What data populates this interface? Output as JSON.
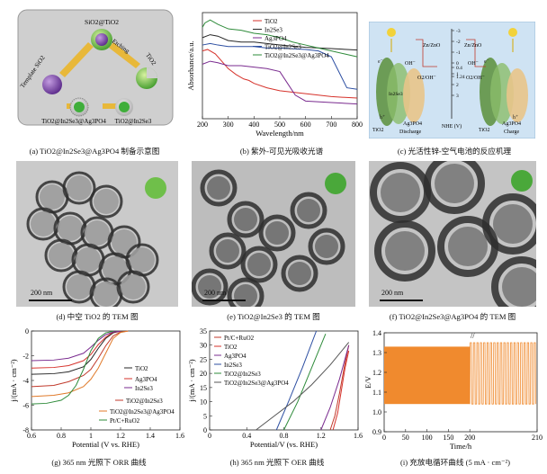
{
  "panels": {
    "a": {
      "caption": "(a) TiO2@In2Se3@Ag3PO4 制备示意图",
      "labels": {
        "top": "SiO2@TiO2",
        "left": "Template SiO2",
        "etching": "Etching",
        "tio2": "TiO2",
        "bottom_left": "TiO2@In2Se3@Ag3PO4",
        "bottom_right": "TiO2@In2Se3"
      }
    },
    "b": {
      "caption": "(b) 紫外-可见光吸收光谱",
      "colors": {
        "TiO2": "#d6322b",
        "In2Se3": "#262626",
        "Ag3PO4": "#7a2b8f",
        "TiO2@In2Se3": "#2d4fa2",
        "TiO2@In2Se3@Ag3PO4": "#2e8b3a"
      }
    },
    "c": {
      "caption": "(c) 光活性锌-空气电池的反应机理",
      "labels": {
        "zn_left": "Zn/ZnO",
        "zn_right": "Zn/ZnO",
        "oh_left": "OH⁻",
        "oh_right": "OH⁻",
        "o2_left": "O2/OH⁻",
        "o2_right": "O2/OH⁻",
        "in2se3": "In2Se3",
        "tio2_left": "TiO2",
        "ag3po4_left": "Ag3PO4",
        "tio2_right": "TiO2",
        "ag3po4_right": "Ag3PO4",
        "discharge": "Discharge",
        "charge": "Charge",
        "nhe": "NHE (V)",
        "e_minus": "e⁻",
        "h_plus": "h⁺",
        "ticks": [
          "-3",
          "-2",
          "-1",
          "0",
          "0.4",
          "1",
          "1.24",
          "2",
          "3"
        ]
      }
    },
    "d": {
      "caption": "(d) 中空 TiO2 的 TEM 图",
      "scale": "200 nm"
    },
    "e": {
      "caption": "(e) TiO2@In2Se3 的 TEM 图",
      "scale": "200 nm"
    },
    "f": {
      "caption": "(f) TiO2@In2Se3@Ag3PO4 的 TEM 图",
      "scale": "200 nm"
    },
    "g": {
      "caption": "(g) 365 nm 光照下 ORR 曲线"
    },
    "h": {
      "caption": "(h) 365 nm 光照下 OER 曲线"
    },
    "i": {
      "caption": "(i) 充放电循环曲线 (5 mA · cm⁻²)",
      "break_mark": "//"
    }
  },
  "chart_data": [
    {
      "id": "b",
      "type": "line",
      "xlabel": "Wavelength/nm",
      "ylabel": "Absorbance/a.u.",
      "xlim": [
        200,
        800
      ],
      "xticks": [
        200,
        300,
        400,
        500,
        600,
        700,
        800
      ],
      "legend": "top-right",
      "series": [
        {
          "name": "TiO2",
          "x": [
            200,
            220,
            250,
            280,
            300,
            330,
            360,
            380,
            400,
            450,
            500,
            600,
            700,
            800
          ],
          "values": [
            2.3,
            2.35,
            2.2,
            1.9,
            1.7,
            1.5,
            1.35,
            1.3,
            1.2,
            1.05,
            0.95,
            0.85,
            0.75,
            0.7
          ]
        },
        {
          "name": "In2Se3",
          "x": [
            200,
            230,
            260,
            300,
            350,
            400,
            450,
            500,
            600,
            700,
            760,
            800
          ],
          "values": [
            2.75,
            2.85,
            2.8,
            2.65,
            2.6,
            2.6,
            2.55,
            2.5,
            2.42,
            2.38,
            2.35,
            2.33
          ]
        },
        {
          "name": "Ag3PO4",
          "x": [
            200,
            230,
            260,
            300,
            350,
            400,
            450,
            500,
            530,
            560,
            600,
            700,
            800
          ],
          "values": [
            1.85,
            1.95,
            1.9,
            1.8,
            1.8,
            1.75,
            1.7,
            1.6,
            1.2,
            0.8,
            0.6,
            0.55,
            0.5
          ]
        },
        {
          "name": "TiO2@In2Se3",
          "x": [
            200,
            230,
            260,
            300,
            350,
            400,
            450,
            500,
            600,
            650,
            700,
            740,
            760,
            800
          ],
          "values": [
            2.5,
            2.55,
            2.5,
            2.45,
            2.45,
            2.45,
            2.4,
            2.4,
            2.35,
            2.3,
            2.1,
            1.4,
            1.05,
            1.0
          ]
        },
        {
          "name": "TiO2@In2Se3@Ag3PO4",
          "x": [
            200,
            210,
            230,
            260,
            300,
            350,
            400,
            450,
            500,
            550,
            600,
            650,
            700,
            750,
            800
          ],
          "values": [
            3.1,
            3.25,
            3.35,
            3.2,
            3.05,
            3.0,
            2.9,
            2.85,
            2.75,
            2.6,
            2.5,
            2.4,
            2.3,
            2.2,
            2.1
          ]
        }
      ]
    },
    {
      "id": "g",
      "type": "line",
      "xlabel": "Potential (V vs. RHE)",
      "ylabel": "j/(mA · cm⁻²)",
      "xlim": [
        0.6,
        1.6
      ],
      "ylim": [
        -8,
        0
      ],
      "xticks": [
        0.6,
        0.8,
        1.0,
        1.2,
        1.4,
        1.6
      ],
      "yticks": [
        0,
        -2,
        -4,
        -6,
        -8
      ],
      "legend": "bottom-right",
      "series": [
        {
          "name": "TiO2",
          "x": [
            0.6,
            0.75,
            0.85,
            0.95,
            1.0,
            1.05,
            1.1,
            1.15,
            1.2
          ],
          "values": [
            -3.5,
            -3.45,
            -3.3,
            -2.9,
            -2.3,
            -1.4,
            -0.6,
            -0.15,
            -0.02
          ]
        },
        {
          "name": "Ag3PO4",
          "x": [
            0.6,
            0.75,
            0.85,
            0.95,
            1.0,
            1.05,
            1.1,
            1.15,
            1.2
          ],
          "values": [
            -3.0,
            -2.95,
            -2.8,
            -2.4,
            -1.9,
            -1.1,
            -0.5,
            -0.1,
            -0.02
          ]
        },
        {
          "name": "In2Se3",
          "x": [
            0.6,
            0.75,
            0.85,
            0.95,
            1.0,
            1.05,
            1.1,
            1.15,
            1.2
          ],
          "values": [
            -2.4,
            -2.35,
            -2.2,
            -1.8,
            -1.3,
            -0.75,
            -0.3,
            -0.08,
            -0.02
          ]
        },
        {
          "name": "TiO2@In2Se3",
          "x": [
            0.6,
            0.75,
            0.85,
            0.95,
            1.0,
            1.05,
            1.1,
            1.15,
            1.2,
            1.25
          ],
          "values": [
            -4.5,
            -4.4,
            -4.1,
            -3.6,
            -3.1,
            -2.2,
            -1.2,
            -0.4,
            -0.08,
            -0.01
          ]
        },
        {
          "name": "TiO2@In2Se3@Ag3PO4",
          "x": [
            0.6,
            0.75,
            0.85,
            0.95,
            1.0,
            1.05,
            1.1,
            1.15,
            1.2,
            1.25
          ],
          "values": [
            -5.3,
            -5.2,
            -5.0,
            -4.5,
            -3.9,
            -3.0,
            -1.8,
            -0.6,
            -0.12,
            -0.01
          ]
        },
        {
          "name": "Pt/C+RuO2",
          "x": [
            0.6,
            0.7,
            0.8,
            0.85,
            0.9,
            0.95,
            1.0,
            1.05,
            1.1,
            1.15
          ],
          "values": [
            -5.9,
            -5.85,
            -5.6,
            -5.2,
            -4.4,
            -3.1,
            -1.6,
            -0.6,
            -0.15,
            -0.02
          ]
        }
      ]
    },
    {
      "id": "h",
      "type": "line",
      "xlabel": "Potential/V (vs. RHE)",
      "ylabel": "j/(mA · cm⁻²)",
      "xlim": [
        0.0,
        1.6
      ],
      "ylim": [
        0,
        35
      ],
      "xticks": [
        0.0,
        0.4,
        0.8,
        1.2,
        1.6
      ],
      "yticks": [
        0,
        5,
        10,
        15,
        20,
        25,
        30,
        35
      ],
      "legend": "top-left",
      "series": [
        {
          "name": "Pt/C+RuO2",
          "x": [
            1.3,
            1.35,
            1.4,
            1.45,
            1.5
          ],
          "values": [
            0,
            5,
            13,
            22,
            30
          ]
        },
        {
          "name": "TiO2",
          "x": [
            1.33,
            1.38,
            1.42,
            1.46,
            1.5
          ],
          "values": [
            0,
            6,
            14,
            22,
            28
          ]
        },
        {
          "name": "Ag3PO4",
          "x": [
            1.2,
            1.3,
            1.4,
            1.5
          ],
          "values": [
            0,
            8,
            18,
            30
          ]
        },
        {
          "name": "In2Se3",
          "x": [
            0.72,
            0.85,
            1.0,
            1.15
          ],
          "values": [
            0,
            10,
            22,
            35
          ]
        },
        {
          "name": "TiO2@In2Se3",
          "x": [
            0.8,
            0.95,
            1.1,
            1.25
          ],
          "values": [
            0,
            10,
            22,
            34
          ]
        },
        {
          "name": "TiO2@In2Se3@Ag3PO4",
          "x": [
            0.5,
            0.7,
            0.9,
            1.1,
            1.3,
            1.5
          ],
          "values": [
            0,
            5,
            10,
            16,
            23,
            31
          ]
        }
      ]
    },
    {
      "id": "i",
      "type": "area",
      "xlabel": "Time/h",
      "ylabel": "E/V",
      "xlim": [
        0,
        210
      ],
      "ylim": [
        0.9,
        1.4
      ],
      "xticks": [
        0,
        50,
        100,
        150,
        200,
        210
      ],
      "yticks": [
        0.9,
        1.0,
        1.1,
        1.2,
        1.3,
        1.4
      ],
      "dense_band": {
        "x_start": 0,
        "x_end": 200,
        "low": 1.04,
        "high": 1.33
      },
      "cycles": {
        "x_start": 200,
        "x_end": 210,
        "low": 1.04,
        "high": 1.35,
        "count": 20
      }
    }
  ]
}
